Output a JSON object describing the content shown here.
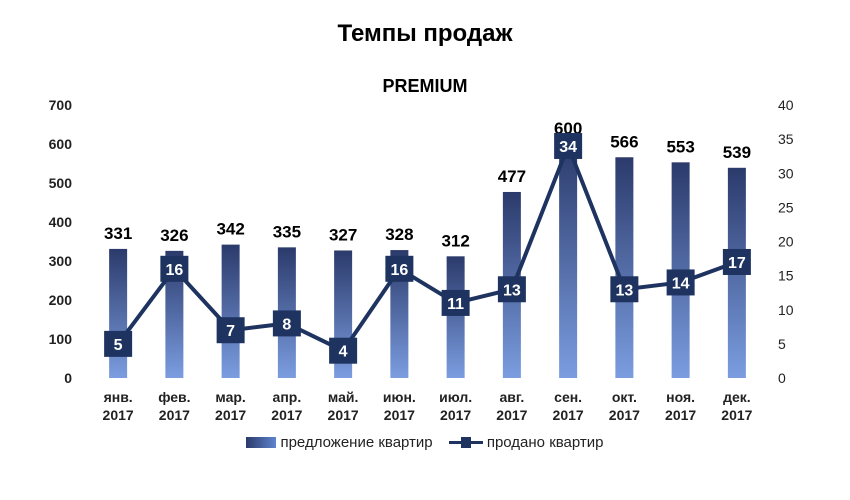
{
  "title": "Темпы продаж",
  "subtitle": "PREMIUM",
  "legend": {
    "bars_label": "предложение квартир",
    "line_label": "продано квартир"
  },
  "colors": {
    "bar_top": "#2b3a6b",
    "bar_bottom": "#7b9de0",
    "line": "#1f3360",
    "marker": "#1f3360",
    "marker_text": "#ffffff"
  },
  "chart_data": {
    "type": "bar+line",
    "categories": [
      [
        "янв.",
        "2017"
      ],
      [
        "фев.",
        "2017"
      ],
      [
        "мар.",
        "2017"
      ],
      [
        "апр.",
        "2017"
      ],
      [
        "май.",
        "2017"
      ],
      [
        "июн.",
        "2017"
      ],
      [
        "июл.",
        "2017"
      ],
      [
        "авг.",
        "2017"
      ],
      [
        "сен.",
        "2017"
      ],
      [
        "окт.",
        "2017"
      ],
      [
        "ноя.",
        "2017"
      ],
      [
        "дек.",
        "2017"
      ]
    ],
    "series": [
      {
        "name": "предложение квартир",
        "type": "bar",
        "axis": "left",
        "values": [
          331,
          326,
          342,
          335,
          327,
          328,
          312,
          477,
          600,
          566,
          553,
          539
        ]
      },
      {
        "name": "продано квартир",
        "type": "line",
        "axis": "right",
        "values": [
          5,
          16,
          7,
          8,
          4,
          16,
          11,
          13,
          34,
          13,
          14,
          17
        ]
      }
    ],
    "y_left": {
      "min": 0,
      "max": 700,
      "ticks": [
        0,
        100,
        200,
        300,
        400,
        500,
        600,
        700
      ]
    },
    "y_right": {
      "min": 0,
      "max": 40,
      "ticks": [
        0,
        5,
        10,
        15,
        20,
        25,
        30,
        35,
        40
      ]
    },
    "grid": false,
    "legend_position": "bottom"
  }
}
